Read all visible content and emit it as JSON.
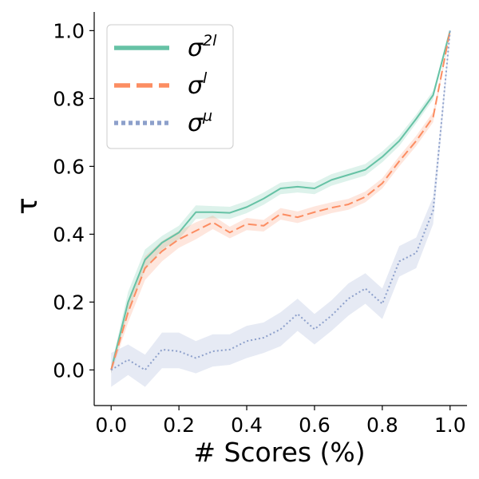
{
  "chart_data": {
    "type": "line",
    "title": "",
    "xlabel": "# Scores (%)",
    "ylabel": "τ",
    "xlim": [
      -0.05,
      1.05
    ],
    "ylim": [
      -0.105,
      1.055
    ],
    "xticks": [
      0.0,
      0.2,
      0.4,
      0.6,
      0.8,
      1.0
    ],
    "xtick_labels": [
      "0.0",
      "0.2",
      "0.4",
      "0.6",
      "0.8",
      "1.0"
    ],
    "yticks": [
      0.0,
      0.2,
      0.4,
      0.6,
      0.8,
      1.0
    ],
    "ytick_labels": [
      "0.0",
      "0.2",
      "0.4",
      "0.6",
      "0.8",
      "1.0"
    ],
    "grid": false,
    "legend_position": "top-left",
    "x": [
      0.0,
      0.05,
      0.1,
      0.15,
      0.2,
      0.25,
      0.3,
      0.35,
      0.4,
      0.45,
      0.5,
      0.55,
      0.6,
      0.65,
      0.7,
      0.75,
      0.8,
      0.85,
      0.9,
      0.95,
      1.0
    ],
    "series": [
      {
        "name": "σ2l",
        "label_base": "σ",
        "label_sup": "2l",
        "color": "#66c2a5",
        "dash": "solid",
        "values": [
          0.0,
          0.2,
          0.325,
          0.375,
          0.405,
          0.465,
          0.465,
          0.463,
          0.48,
          0.505,
          0.535,
          0.54,
          0.535,
          0.56,
          0.575,
          0.59,
          0.628,
          0.675,
          0.74,
          0.81,
          1.0
        ],
        "lower": [
          -0.01,
          0.17,
          0.295,
          0.355,
          0.385,
          0.445,
          0.447,
          0.445,
          0.462,
          0.487,
          0.518,
          0.523,
          0.518,
          0.543,
          0.558,
          0.573,
          0.612,
          0.66,
          0.727,
          0.797,
          0.99
        ],
        "upper": [
          0.01,
          0.23,
          0.355,
          0.395,
          0.425,
          0.485,
          0.483,
          0.481,
          0.498,
          0.523,
          0.552,
          0.557,
          0.552,
          0.577,
          0.592,
          0.607,
          0.644,
          0.69,
          0.753,
          0.823,
          1.0
        ]
      },
      {
        "name": "σl",
        "label_base": "σ",
        "label_sup": "l",
        "color": "#fc8d62",
        "dash": "dashed",
        "values": [
          0.0,
          0.17,
          0.3,
          0.35,
          0.385,
          0.41,
          0.435,
          0.405,
          0.43,
          0.425,
          0.46,
          0.45,
          0.465,
          0.478,
          0.488,
          0.51,
          0.55,
          0.615,
          0.675,
          0.745,
          1.0
        ],
        "lower": [
          -0.01,
          0.14,
          0.265,
          0.32,
          0.36,
          0.385,
          0.415,
          0.388,
          0.412,
          0.408,
          0.443,
          0.433,
          0.448,
          0.462,
          0.472,
          0.494,
          0.535,
          0.6,
          0.66,
          0.73,
          0.99
        ],
        "upper": [
          0.01,
          0.2,
          0.335,
          0.38,
          0.41,
          0.435,
          0.455,
          0.422,
          0.448,
          0.442,
          0.477,
          0.467,
          0.482,
          0.494,
          0.504,
          0.526,
          0.565,
          0.63,
          0.69,
          0.76,
          1.0
        ]
      },
      {
        "name": "σμ",
        "label_base": "σ",
        "label_sup": "μ",
        "color": "#8da0cb",
        "dash": "dotted",
        "values": [
          0.0,
          0.03,
          0.0,
          0.06,
          0.055,
          0.035,
          0.055,
          0.06,
          0.085,
          0.095,
          0.12,
          0.165,
          0.12,
          0.16,
          0.21,
          0.24,
          0.195,
          0.32,
          0.345,
          0.47,
          1.0
        ],
        "lower": [
          -0.05,
          -0.015,
          -0.05,
          0.005,
          0.005,
          -0.01,
          0.01,
          0.015,
          0.035,
          0.05,
          0.07,
          0.115,
          0.075,
          0.115,
          0.16,
          0.195,
          0.15,
          0.275,
          0.3,
          0.43,
          0.985
        ],
        "upper": [
          0.05,
          0.075,
          0.045,
          0.11,
          0.11,
          0.085,
          0.105,
          0.105,
          0.13,
          0.14,
          0.17,
          0.21,
          0.165,
          0.205,
          0.255,
          0.285,
          0.24,
          0.365,
          0.39,
          0.51,
          1.0
        ]
      }
    ]
  }
}
